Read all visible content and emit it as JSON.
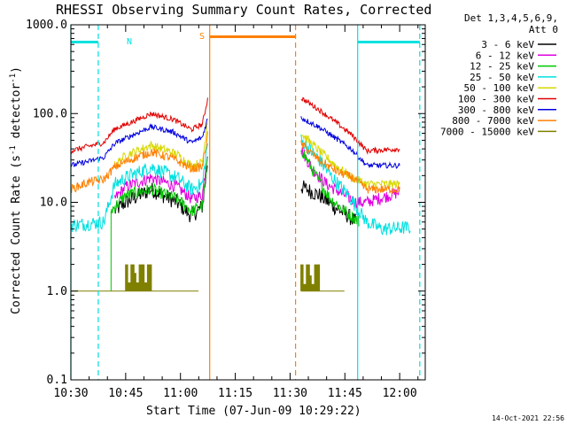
{
  "chart_data": {
    "type": "line",
    "title": "RHESSI Observing Summary Count Rates, Corrected",
    "xlabel": "Start Time (07-Jun-09 10:29:22)",
    "ylabel_main": "Corrected Count Rate (s",
    "ylabel_sup1": "-1",
    "ylabel_mid": " detector",
    "ylabel_sup2": "-1",
    "ylabel_end": ")",
    "y_scale": "log",
    "ylim": [
      0.1,
      1000
    ],
    "xlim_minutes": [
      630,
      727
    ],
    "xticks": [
      {
        "label": "10:30",
        "m": 630
      },
      {
        "label": "10:45",
        "m": 645
      },
      {
        "label": "11:00",
        "m": 660
      },
      {
        "label": "11:15",
        "m": 675
      },
      {
        "label": "11:30",
        "m": 690
      },
      {
        "label": "11:45",
        "m": 705
      },
      {
        "label": "12:00",
        "m": 720
      }
    ],
    "yticks": [
      {
        "label": "0.1",
        "v": 0.1
      },
      {
        "label": "1.0",
        "v": 1
      },
      {
        "label": "10.0",
        "v": 10
      },
      {
        "label": "100.0",
        "v": 100
      },
      {
        "label": "1000.0",
        "v": 1000
      }
    ],
    "legend_header": [
      "Det 1,3,4,5,6,9,",
      "Att 0"
    ],
    "legend_position": "right",
    "series": [
      {
        "name": "3 - 6 keV",
        "color": "#000000",
        "noise": 0.09,
        "pts1": [
          [
            642,
            8
          ],
          [
            645,
            10
          ],
          [
            652,
            14
          ],
          [
            659,
            10
          ],
          [
            663,
            7
          ],
          [
            666,
            9
          ],
          [
            667.5,
            30
          ]
        ],
        "pts2": [
          [
            693,
            15
          ],
          [
            698,
            12
          ],
          [
            702,
            9
          ],
          [
            706,
            7
          ],
          [
            708,
            6
          ]
        ]
      },
      {
        "name": "6 - 12 keV",
        "color": "#e000e0",
        "noise": 0.07,
        "pts1": [
          [
            642,
            11
          ],
          [
            645,
            15
          ],
          [
            652,
            19
          ],
          [
            659,
            15
          ],
          [
            663,
            11
          ],
          [
            666,
            12
          ],
          [
            667.5,
            40
          ]
        ],
        "pts2": [
          [
            693,
            40
          ],
          [
            696,
            24
          ],
          [
            700,
            16
          ],
          [
            705,
            12
          ],
          [
            708,
            10
          ],
          [
            711,
            10
          ],
          [
            720,
            13
          ]
        ]
      },
      {
        "name": "12 - 25 keV",
        "color": "#00c800",
        "noise": 0.07,
        "pts1": [
          [
            641,
            8
          ],
          [
            645,
            12
          ],
          [
            652,
            14
          ],
          [
            659,
            11
          ],
          [
            663,
            8
          ],
          [
            666,
            9
          ],
          [
            667.5,
            30
          ]
        ],
        "pts2": [
          [
            693,
            40
          ],
          [
            697,
            20
          ],
          [
            701,
            11
          ],
          [
            705,
            8
          ],
          [
            709,
            6
          ]
        ]
      },
      {
        "name": "25 - 50 keV",
        "color": "#00e0e0",
        "noise": 0.08,
        "pts1": [
          [
            630,
            5.5
          ],
          [
            639,
            6
          ],
          [
            642,
            16
          ],
          [
            645,
            19
          ],
          [
            652,
            25
          ],
          [
            659,
            19
          ],
          [
            663,
            14
          ],
          [
            666,
            16
          ],
          [
            667.5,
            50
          ]
        ],
        "pts2": [
          [
            693,
            50
          ],
          [
            698,
            30
          ],
          [
            702,
            18
          ],
          [
            706,
            12
          ],
          [
            708,
            9
          ],
          [
            711,
            6
          ],
          [
            715,
            5
          ],
          [
            723,
            5.2
          ]
        ]
      },
      {
        "name": "50 - 100 keV",
        "color": "#d8d800",
        "noise": 0.05,
        "pts1": [
          [
            642,
            26
          ],
          [
            645,
            34
          ],
          [
            652,
            44
          ],
          [
            659,
            35
          ],
          [
            663,
            26
          ],
          [
            666,
            28
          ],
          [
            667.5,
            90
          ]
        ],
        "pts2": [
          [
            693,
            60
          ],
          [
            698,
            38
          ],
          [
            703,
            25
          ],
          [
            707,
            19
          ],
          [
            711,
            16
          ],
          [
            720,
            16
          ]
        ]
      },
      {
        "name": "100 - 300 keV",
        "color": "#e00000",
        "noise": 0.03,
        "pts1": [
          [
            630,
            38
          ],
          [
            635,
            43
          ],
          [
            639,
            47
          ],
          [
            642,
            67
          ],
          [
            646,
            78
          ],
          [
            652,
            100
          ],
          [
            658,
            86
          ],
          [
            663,
            66
          ],
          [
            666,
            76
          ],
          [
            667.5,
            150
          ]
        ],
        "pts2": [
          [
            693,
            150
          ],
          [
            698,
            110
          ],
          [
            703,
            77
          ],
          [
            707,
            57
          ],
          [
            711,
            38
          ],
          [
            720,
            40
          ]
        ]
      },
      {
        "name": "300 - 800 keV",
        "color": "#0000e0",
        "noise": 0.03,
        "pts1": [
          [
            630,
            26
          ],
          [
            635,
            29
          ],
          [
            639,
            32
          ],
          [
            642,
            46
          ],
          [
            646,
            55
          ],
          [
            652,
            71
          ],
          [
            658,
            62
          ],
          [
            663,
            47
          ],
          [
            666,
            54
          ],
          [
            667.5,
            90
          ]
        ],
        "pts2": [
          [
            693,
            90
          ],
          [
            698,
            70
          ],
          [
            703,
            51
          ],
          [
            707,
            39
          ],
          [
            711,
            26
          ],
          [
            720,
            26
          ]
        ]
      },
      {
        "name": "800 - 7000 keV",
        "color": "#ff8000",
        "noise": 0.05,
        "pts1": [
          [
            630,
            14
          ],
          [
            635,
            17
          ],
          [
            639,
            18
          ],
          [
            642,
            25
          ],
          [
            646,
            30
          ],
          [
            652,
            37
          ],
          [
            658,
            31
          ],
          [
            663,
            24
          ],
          [
            666,
            25
          ],
          [
            667.5,
            60
          ]
        ],
        "pts2": [
          [
            693,
            45
          ],
          [
            698,
            30
          ],
          [
            703,
            22
          ],
          [
            707,
            19
          ],
          [
            711,
            14
          ],
          [
            720,
            14
          ]
        ]
      },
      {
        "name": "7000 - 15000 keV",
        "color": "#808000",
        "noise": 0.0,
        "pts1": [
          [
            630,
            1
          ],
          [
            665,
            1
          ]
        ],
        "pts2": [
          [
            693,
            1
          ],
          [
            705,
            1
          ]
        ]
      }
    ],
    "flags": {
      "N_label": "N",
      "S_label": "S",
      "cyan_bars": [
        [
          630,
          637.5
        ],
        [
          708.5,
          725.5
        ]
      ],
      "cyan_solid": [
        630,
        708.5
      ],
      "cyan_dashed": [
        637.5,
        725.5
      ],
      "orange_bar": [
        668,
        691.5
      ],
      "orange_solid": 668,
      "orange_dashed": 691.5
    },
    "timestamp": "14-Oct-2021 22:56"
  }
}
